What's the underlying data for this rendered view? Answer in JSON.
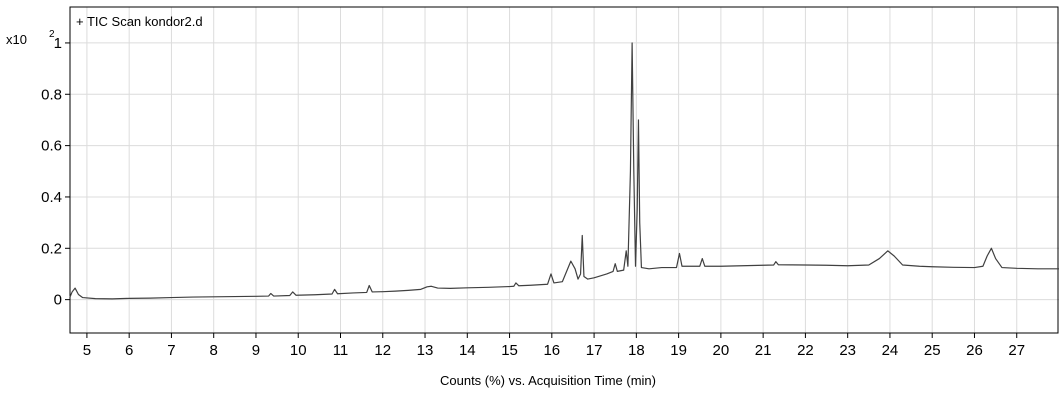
{
  "chart_data": {
    "type": "line",
    "title": "",
    "legend": "+ TIC Scan kondor2.d",
    "legend_position": "top-left",
    "xlabel": "Counts (%) vs. Acquisition Time (min)",
    "ylabel": "",
    "y_multiplier_base": "x10",
    "y_multiplier_exp": "2",
    "xlim": [
      4.6,
      28.0
    ],
    "ylim": [
      -0.13,
      1.14
    ],
    "grid": true,
    "x_ticks": [
      5,
      6,
      7,
      8,
      9,
      10,
      11,
      12,
      13,
      14,
      15,
      16,
      17,
      18,
      19,
      20,
      21,
      22,
      23,
      24,
      25,
      26,
      27
    ],
    "y_ticks": [
      0,
      0.2,
      0.4,
      0.6,
      0.8,
      1
    ],
    "y_tick_labels": [
      "0",
      "0.2",
      "0.4",
      "0.6",
      "0.8",
      "1"
    ],
    "series": [
      {
        "color": "#404040",
        "points": [
          [
            4.6,
            0.01
          ],
          [
            4.65,
            0.03
          ],
          [
            4.72,
            0.045
          ],
          [
            4.8,
            0.02
          ],
          [
            4.9,
            0.008
          ],
          [
            5.2,
            0.004
          ],
          [
            5.6,
            0.003
          ],
          [
            6.0,
            0.005
          ],
          [
            6.5,
            0.006
          ],
          [
            7.0,
            0.008
          ],
          [
            7.5,
            0.01
          ],
          [
            8.0,
            0.011
          ],
          [
            8.5,
            0.012
          ],
          [
            9.0,
            0.013
          ],
          [
            9.3,
            0.014
          ],
          [
            9.35,
            0.024
          ],
          [
            9.42,
            0.014
          ],
          [
            9.8,
            0.016
          ],
          [
            9.87,
            0.03
          ],
          [
            9.95,
            0.017
          ],
          [
            10.4,
            0.019
          ],
          [
            10.8,
            0.022
          ],
          [
            10.86,
            0.04
          ],
          [
            10.93,
            0.023
          ],
          [
            11.3,
            0.026
          ],
          [
            11.62,
            0.028
          ],
          [
            11.68,
            0.055
          ],
          [
            11.75,
            0.03
          ],
          [
            12.0,
            0.031
          ],
          [
            12.3,
            0.033
          ],
          [
            12.6,
            0.036
          ],
          [
            12.9,
            0.04
          ],
          [
            13.05,
            0.05
          ],
          [
            13.15,
            0.052
          ],
          [
            13.3,
            0.045
          ],
          [
            13.6,
            0.044
          ],
          [
            14.0,
            0.046
          ],
          [
            14.5,
            0.048
          ],
          [
            15.0,
            0.051
          ],
          [
            15.1,
            0.052
          ],
          [
            15.15,
            0.065
          ],
          [
            15.22,
            0.054
          ],
          [
            15.5,
            0.056
          ],
          [
            15.9,
            0.06
          ],
          [
            15.98,
            0.1
          ],
          [
            16.05,
            0.065
          ],
          [
            16.25,
            0.07
          ],
          [
            16.35,
            0.11
          ],
          [
            16.45,
            0.15
          ],
          [
            16.55,
            0.12
          ],
          [
            16.62,
            0.08
          ],
          [
            16.68,
            0.1
          ],
          [
            16.72,
            0.25
          ],
          [
            16.76,
            0.09
          ],
          [
            16.85,
            0.08
          ],
          [
            17.0,
            0.085
          ],
          [
            17.3,
            0.1
          ],
          [
            17.45,
            0.11
          ],
          [
            17.5,
            0.14
          ],
          [
            17.55,
            0.11
          ],
          [
            17.7,
            0.115
          ],
          [
            17.76,
            0.19
          ],
          [
            17.8,
            0.13
          ],
          [
            17.86,
            0.5
          ],
          [
            17.9,
            1.0
          ],
          [
            17.94,
            0.5
          ],
          [
            17.98,
            0.13
          ],
          [
            18.02,
            0.35
          ],
          [
            18.05,
            0.7
          ],
          [
            18.08,
            0.3
          ],
          [
            18.12,
            0.125
          ],
          [
            18.3,
            0.12
          ],
          [
            18.6,
            0.125
          ],
          [
            18.95,
            0.125
          ],
          [
            19.02,
            0.18
          ],
          [
            19.08,
            0.13
          ],
          [
            19.5,
            0.13
          ],
          [
            19.56,
            0.16
          ],
          [
            19.62,
            0.13
          ],
          [
            20.0,
            0.13
          ],
          [
            20.5,
            0.132
          ],
          [
            21.0,
            0.134
          ],
          [
            21.25,
            0.135
          ],
          [
            21.3,
            0.148
          ],
          [
            21.36,
            0.136
          ],
          [
            22.0,
            0.135
          ],
          [
            22.5,
            0.134
          ],
          [
            23.0,
            0.132
          ],
          [
            23.5,
            0.135
          ],
          [
            23.75,
            0.16
          ],
          [
            23.95,
            0.19
          ],
          [
            24.1,
            0.17
          ],
          [
            24.3,
            0.135
          ],
          [
            24.7,
            0.13
          ],
          [
            25.0,
            0.128
          ],
          [
            25.5,
            0.126
          ],
          [
            26.0,
            0.125
          ],
          [
            26.2,
            0.13
          ],
          [
            26.3,
            0.17
          ],
          [
            26.4,
            0.2
          ],
          [
            26.5,
            0.16
          ],
          [
            26.65,
            0.125
          ],
          [
            27.0,
            0.122
          ],
          [
            27.5,
            0.12
          ],
          [
            28.0,
            0.12
          ]
        ]
      }
    ]
  }
}
